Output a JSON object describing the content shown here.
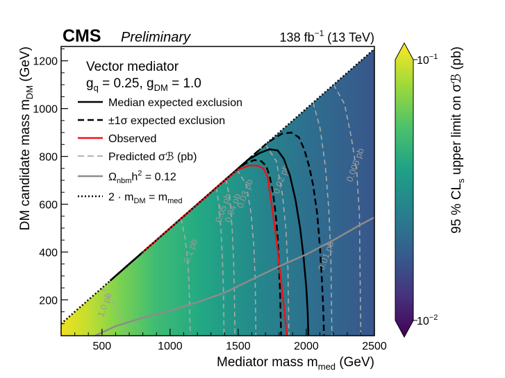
{
  "chart_data": {
    "type": "heatmap",
    "experiment": "CMS",
    "status": "Preliminary",
    "lumi": "138 fb",
    "lumi_exp": "−1",
    "energy": "(13 TeV)",
    "xlabel": "Mediator mass m",
    "xlabel_sub": "med",
    "xunit": "(GeV)",
    "ylabel": "DM candidate mass m",
    "ylabel_sub": "DM",
    "yunit": "(GeV)",
    "xlim": [
      200,
      2500
    ],
    "ylim": [
      50,
      1260
    ],
    "xticks": [
      500,
      1000,
      1500,
      2000,
      2500
    ],
    "yticks": [
      200,
      400,
      600,
      800,
      1000,
      1200
    ],
    "colorbar": {
      "label": "95 % CL",
      "label_sub": "s",
      "label_rest": "upper limit on σℬ (pb)",
      "scale": "log",
      "range": [
        0.01,
        0.1
      ],
      "top_label": "10",
      "top_exp": "−1",
      "bottom_label": "10",
      "bottom_exp": "−2",
      "colors": [
        "#440154",
        "#46327e",
        "#365c8d",
        "#277f8e",
        "#1fa187",
        "#4ac16d",
        "#a0da39",
        "#fde725"
      ]
    },
    "legend": {
      "model": "Vector mediator",
      "couplings": "g",
      "g_q_sub": "q",
      "g_q_val": " = 0.25, g",
      "g_dm_sub": "DM",
      "g_dm_val": " = 1.0",
      "entries": [
        {
          "style": "solid-black",
          "label": "Median expected exclusion"
        },
        {
          "style": "dashed-black",
          "label": "±1σ expected exclusion"
        },
        {
          "style": "solid-red",
          "label": "Observed"
        },
        {
          "style": "dashed-gray",
          "label": "Predicted σℬ (pb)"
        },
        {
          "style": "solid-gray",
          "label": "Ω",
          "label_sub": "nbm",
          "label_rest": "h",
          "label_sup": "2",
          "label_end": " = 0.12"
        },
        {
          "style": "dotted-black",
          "label": "2 · m",
          "label_sub": "DM",
          "label_rest": " = m",
          "label_sub2": "med"
        }
      ]
    },
    "series": [
      {
        "name": "Median expected exclusion",
        "points": [
          [
            560,
            280
          ],
          [
            700,
            350
          ],
          [
            850,
            425
          ],
          [
            1000,
            500
          ],
          [
            1150,
            575
          ],
          [
            1300,
            650
          ],
          [
            1450,
            725
          ],
          [
            1570,
            785
          ],
          [
            1660,
            815
          ],
          [
            1730,
            830
          ],
          [
            1790,
            825
          ],
          [
            1835,
            790
          ],
          [
            1880,
            720
          ],
          [
            1920,
            620
          ],
          [
            1955,
            500
          ],
          [
            1980,
            380
          ],
          [
            2000,
            250
          ],
          [
            2010,
            150
          ],
          [
            2015,
            50
          ]
        ]
      },
      {
        "name": "Expected +1 sigma",
        "points": [
          [
            600,
            300
          ],
          [
            800,
            400
          ],
          [
            1000,
            500
          ],
          [
            1200,
            600
          ],
          [
            1400,
            700
          ],
          [
            1600,
            800
          ],
          [
            1720,
            860
          ],
          [
            1820,
            895
          ],
          [
            1890,
            900
          ],
          [
            1945,
            880
          ],
          [
            1985,
            830
          ],
          [
            2020,
            760
          ],
          [
            2050,
            680
          ],
          [
            2080,
            560
          ],
          [
            2100,
            420
          ],
          [
            2115,
            280
          ],
          [
            2125,
            150
          ],
          [
            2130,
            50
          ]
        ]
      },
      {
        "name": "Expected -1 sigma",
        "points": [
          [
            560,
            280
          ],
          [
            700,
            350
          ],
          [
            900,
            450
          ],
          [
            1100,
            550
          ],
          [
            1300,
            650
          ],
          [
            1450,
            725
          ],
          [
            1550,
            770
          ],
          [
            1620,
            785
          ],
          [
            1670,
            780
          ],
          [
            1705,
            760
          ],
          [
            1730,
            720
          ],
          [
            1755,
            650
          ],
          [
            1775,
            560
          ],
          [
            1790,
            460
          ],
          [
            1800,
            340
          ],
          [
            1808,
            220
          ],
          [
            1812,
            120
          ],
          [
            1815,
            50
          ]
        ]
      },
      {
        "name": "Observed",
        "points": [
          [
            790,
            395
          ],
          [
            900,
            450
          ],
          [
            1050,
            525
          ],
          [
            1200,
            600
          ],
          [
            1350,
            675
          ],
          [
            1500,
            745
          ],
          [
            1580,
            762
          ],
          [
            1640,
            762
          ],
          [
            1685,
            750
          ],
          [
            1715,
            715
          ],
          [
            1735,
            640
          ],
          [
            1760,
            540
          ],
          [
            1785,
            430
          ],
          [
            1805,
            330
          ],
          [
            1822,
            240
          ],
          [
            1838,
            160
          ],
          [
            1850,
            90
          ],
          [
            1858,
            50
          ]
        ]
      },
      {
        "name": "Omega nbm h2 = 0.12",
        "points": [
          [
            450,
            50
          ],
          [
            600,
            90
          ],
          [
            800,
            125
          ],
          [
            1000,
            155
          ],
          [
            1200,
            190
          ],
          [
            1400,
            230
          ],
          [
            1600,
            285
          ],
          [
            1800,
            340
          ],
          [
            2000,
            390
          ],
          [
            2200,
            450
          ],
          [
            2400,
            515
          ],
          [
            2500,
            545
          ]
        ]
      },
      {
        "name": "Kinematic limit 2 m_DM = m_med",
        "points": [
          [
            200,
            100
          ],
          [
            2500,
            1250
          ]
        ]
      }
    ],
    "cross_section_contours": [
      {
        "label": "1.0 pb",
        "points": [
          [
            500,
            250
          ],
          [
            560,
            210
          ],
          [
            610,
            160
          ],
          [
            650,
            110
          ],
          [
            680,
            50
          ]
        ],
        "label_at": [
          540,
          175
        ]
      },
      {
        "label": "0.1 pb",
        "points": [
          [
            1080,
            540
          ],
          [
            1110,
            460
          ],
          [
            1130,
            360
          ],
          [
            1140,
            250
          ],
          [
            1145,
            120
          ],
          [
            1148,
            50
          ]
        ],
        "label_at": [
          1170,
          400
        ]
      },
      {
        "label": "0.05 pb",
        "points": [
          [
            1340,
            670
          ],
          [
            1360,
            590
          ],
          [
            1375,
            480
          ],
          [
            1385,
            360
          ],
          [
            1392,
            230
          ],
          [
            1396,
            50
          ]
        ],
        "label_at": [
          1410,
          580
        ]
      },
      {
        "label": "0.04 pb",
        "points": [
          [
            1410,
            705
          ],
          [
            1440,
            620
          ],
          [
            1455,
            500
          ],
          [
            1465,
            380
          ],
          [
            1472,
            230
          ],
          [
            1476,
            50
          ]
        ],
        "label_at": [
          1480,
          580
        ]
      },
      {
        "label": "0.03 pb",
        "points": [
          [
            1490,
            745
          ],
          [
            1560,
            680
          ],
          [
            1595,
            560
          ],
          [
            1615,
            420
          ],
          [
            1625,
            280
          ],
          [
            1630,
            50
          ]
        ],
        "label_at": [
          1570,
          640
        ]
      },
      {
        "label": "0.02 pb",
        "points": [
          [
            1700,
            850
          ],
          [
            1780,
            780
          ],
          [
            1825,
            640
          ],
          [
            1850,
            500
          ],
          [
            1865,
            330
          ],
          [
            1872,
            50
          ]
        ],
        "label_at": [
          1835,
          700
        ]
      },
      {
        "label": "0.01 pb",
        "points": [
          [
            2050,
            1025
          ],
          [
            2100,
            920
          ],
          [
            2140,
            760
          ],
          [
            2165,
            580
          ],
          [
            2180,
            380
          ],
          [
            2188,
            50
          ]
        ],
        "label_at": [
          2165,
          380
        ]
      },
      {
        "label": "0.005 pb",
        "points": [
          [
            2200,
            1100
          ],
          [
            2280,
            1020
          ],
          [
            2330,
            880
          ],
          [
            2370,
            740
          ],
          [
            2390,
            560
          ],
          [
            2400,
            50
          ]
        ],
        "label_at": [
          2380,
          760
        ]
      }
    ]
  }
}
